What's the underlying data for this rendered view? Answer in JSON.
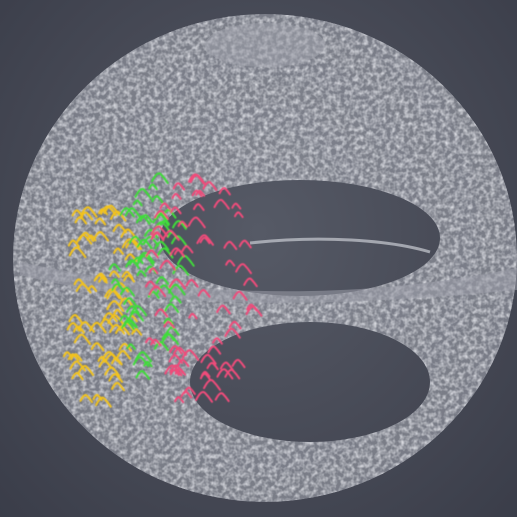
{
  "image": {
    "kind": "3D fluorescence microscopy render",
    "background_color": "#454855",
    "tissue_color": "#b9bcc4",
    "track_groups": [
      {
        "name": "yellow-tracks",
        "color": "#f2c21b"
      },
      {
        "name": "green-tracks",
        "color": "#3fdc3a"
      },
      {
        "name": "pink-tracks",
        "color": "#f04c7a"
      }
    ]
  }
}
